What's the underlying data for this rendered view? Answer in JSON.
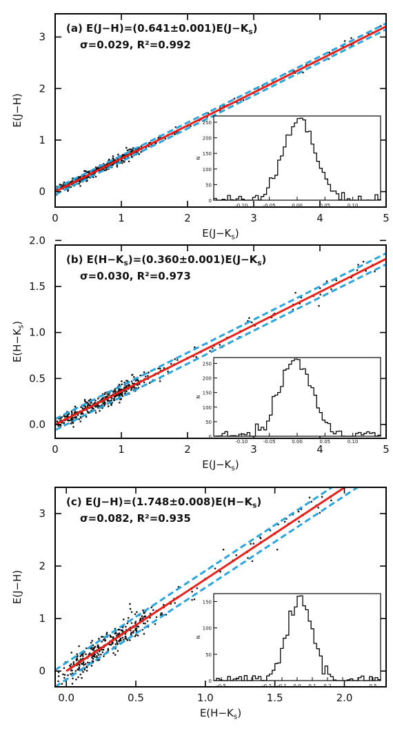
{
  "chart_data": [
    {
      "type": "scatter",
      "panel_label": "(a)",
      "annotation_line1": "(a) E(J−H)=(0.641±0.001)E(J−K_s)",
      "annotation_line2": "σ=0.029, R²=0.992",
      "xlabel": "E(J−K_s)",
      "ylabel": "E(J−H)",
      "xlim": [
        0,
        5
      ],
      "ylim": [
        -0.3,
        3.45
      ],
      "xticks": [
        0,
        1,
        2,
        3,
        4,
        5
      ],
      "yticks": [
        0,
        1,
        2,
        3
      ],
      "x_tick_labels": [
        "0",
        "1",
        "2",
        "3",
        "4",
        "5"
      ],
      "y_tick_labels": [
        "0",
        "1",
        "2",
        "3"
      ],
      "grid": false,
      "fit": {
        "slope": 0.641,
        "intercept": 0.0,
        "color": "#e8201a"
      },
      "band": {
        "offset": 0.058,
        "color": "#2aa4dd"
      },
      "points": [
        [
          0.1,
          0.07
        ],
        [
          0.15,
          0.09
        ],
        [
          0.2,
          0.14
        ],
        [
          0.25,
          0.15
        ],
        [
          0.3,
          0.19
        ],
        [
          0.35,
          0.24
        ],
        [
          0.4,
          0.25
        ],
        [
          0.45,
          0.3
        ],
        [
          0.5,
          0.32
        ],
        [
          0.55,
          0.35
        ],
        [
          0.6,
          0.38
        ],
        [
          0.65,
          0.43
        ],
        [
          0.7,
          0.45
        ],
        [
          0.75,
          0.47
        ],
        [
          0.8,
          0.52
        ],
        [
          0.85,
          0.54
        ],
        [
          0.9,
          0.58
        ],
        [
          0.95,
          0.6
        ],
        [
          1.0,
          0.64
        ],
        [
          1.05,
          0.67
        ],
        [
          1.1,
          0.71
        ],
        [
          1.15,
          0.73
        ],
        [
          1.2,
          0.77
        ],
        [
          1.25,
          0.8
        ],
        [
          1.3,
          0.83
        ],
        [
          1.4,
          0.9
        ],
        [
          1.5,
          0.96
        ],
        [
          1.6,
          1.03
        ],
        [
          1.7,
          1.09
        ],
        [
          1.8,
          1.15
        ],
        [
          2.0,
          1.28
        ],
        [
          2.2,
          1.41
        ],
        [
          2.4,
          1.54
        ],
        [
          2.6,
          1.67
        ],
        [
          2.8,
          1.79
        ],
        [
          3.0,
          1.92
        ],
        [
          3.3,
          2.12
        ],
        [
          3.6,
          2.31
        ],
        [
          3.9,
          2.5
        ],
        [
          4.2,
          2.69
        ],
        [
          4.5,
          2.88
        ],
        [
          4.8,
          3.08
        ]
      ],
      "inset": {
        "xlim": [
          -0.15,
          0.15
        ],
        "ylim": [
          0,
          270
        ],
        "xticks": [
          -0.1,
          -0.05,
          0.0,
          0.05,
          0.1
        ],
        "x_tick_labels": [
          "-0.10",
          "-0.05",
          "0.00",
          "0.05",
          "0.10"
        ],
        "yticks": [
          0,
          50,
          100,
          150,
          200,
          250
        ],
        "y_tick_labels": [
          "0",
          "50",
          "100",
          "150",
          "200",
          "250"
        ],
        "ylabel": "N",
        "mu": 0.004,
        "sigma": 0.029,
        "peak": 258
      }
    },
    {
      "type": "scatter",
      "panel_label": "(b)",
      "annotation_line1": "(b) E(H−K_s)=(0.360±0.001)E(J−K_s)",
      "annotation_line2": "σ=0.030, R²=0.973",
      "xlabel": "E(J−K_s)",
      "ylabel": "E(H−K_s)",
      "xlim": [
        0,
        5
      ],
      "ylim": [
        -0.15,
        1.95
      ],
      "xticks": [
        0,
        1,
        2,
        3,
        4,
        5
      ],
      "yticks": [
        0.0,
        0.5,
        1.0,
        1.5,
        2.0
      ],
      "x_tick_labels": [
        "0",
        "1",
        "2",
        "3",
        "4",
        "5"
      ],
      "y_tick_labels": [
        "0.0",
        "0.5",
        "1.0",
        "1.5",
        "2.0"
      ],
      "grid": false,
      "fit": {
        "slope": 0.36,
        "intercept": 0.0,
        "color": "#e8201a"
      },
      "band": {
        "offset": 0.06,
        "color": "#2aa4dd"
      },
      "points": [
        [
          0.1,
          0.04
        ],
        [
          0.15,
          0.05
        ],
        [
          0.2,
          0.08
        ],
        [
          0.25,
          0.09
        ],
        [
          0.3,
          0.11
        ],
        [
          0.35,
          0.13
        ],
        [
          0.4,
          0.14
        ],
        [
          0.45,
          0.17
        ],
        [
          0.5,
          0.18
        ],
        [
          0.55,
          0.2
        ],
        [
          0.6,
          0.22
        ],
        [
          0.65,
          0.24
        ],
        [
          0.7,
          0.25
        ],
        [
          0.75,
          0.27
        ],
        [
          0.8,
          0.29
        ],
        [
          0.85,
          0.31
        ],
        [
          0.9,
          0.32
        ],
        [
          0.95,
          0.34
        ],
        [
          1.0,
          0.36
        ],
        [
          1.05,
          0.38
        ],
        [
          1.1,
          0.39
        ],
        [
          1.15,
          0.41
        ],
        [
          1.2,
          0.44
        ],
        [
          1.25,
          0.45
        ],
        [
          1.3,
          0.47
        ],
        [
          1.4,
          0.5
        ],
        [
          1.5,
          0.54
        ],
        [
          1.6,
          0.58
        ],
        [
          1.7,
          0.61
        ],
        [
          1.8,
          0.65
        ],
        [
          2.0,
          0.72
        ],
        [
          2.2,
          0.79
        ],
        [
          2.4,
          0.86
        ],
        [
          2.6,
          0.94
        ],
        [
          2.8,
          1.01
        ],
        [
          3.0,
          1.08
        ],
        [
          3.3,
          1.19
        ],
        [
          3.6,
          1.3
        ],
        [
          3.9,
          1.4
        ],
        [
          4.2,
          1.51
        ],
        [
          4.5,
          1.62
        ],
        [
          4.8,
          1.73
        ]
      ],
      "inset": {
        "xlim": [
          -0.15,
          0.15
        ],
        "ylim": [
          0,
          270
        ],
        "xticks": [
          -0.1,
          -0.05,
          0.0,
          0.05,
          0.1
        ],
        "x_tick_labels": [
          "-0.10",
          "-0.05",
          "0.00",
          "0.05",
          "0.10"
        ],
        "yticks": [
          0,
          50,
          100,
          150,
          200,
          250
        ],
        "y_tick_labels": [
          "0",
          "50",
          "100",
          "150",
          "200",
          "250"
        ],
        "ylabel": "N",
        "mu": -0.003,
        "sigma": 0.03,
        "peak": 258
      }
    },
    {
      "type": "scatter",
      "panel_label": "(c)",
      "annotation_line1": "(c) E(J−H)=(1.748±0.008)E(H−K_s)",
      "annotation_line2": "σ=0.082, R²=0.935",
      "xlabel": "E(H−K_s)",
      "ylabel": "E(J−H)",
      "xlim": [
        -0.08,
        2.3
      ],
      "ylim": [
        -0.3,
        3.5
      ],
      "xticks": [
        0.0,
        0.5,
        1.0,
        1.5,
        2.0
      ],
      "yticks": [
        0,
        1,
        2,
        3
      ],
      "x_tick_labels": [
        "0.0",
        "0.5",
        "1.0",
        "1.5",
        "2.0"
      ],
      "y_tick_labels": [
        "0",
        "1",
        "2",
        "3"
      ],
      "grid": false,
      "fit": {
        "slope": 1.748,
        "intercept": 0.0,
        "color": "#e8201a"
      },
      "band": {
        "offset": 0.16,
        "color": "#2aa4dd"
      },
      "points": [
        [
          0.03,
          0.05
        ],
        [
          0.05,
          0.09
        ],
        [
          0.08,
          0.14
        ],
        [
          0.1,
          0.17
        ],
        [
          0.12,
          0.21
        ],
        [
          0.15,
          0.26
        ],
        [
          0.18,
          0.31
        ],
        [
          0.2,
          0.35
        ],
        [
          0.22,
          0.39
        ],
        [
          0.25,
          0.44
        ],
        [
          0.28,
          0.49
        ],
        [
          0.3,
          0.52
        ],
        [
          0.33,
          0.58
        ],
        [
          0.35,
          0.61
        ],
        [
          0.38,
          0.66
        ],
        [
          0.4,
          0.7
        ],
        [
          0.43,
          0.75
        ],
        [
          0.45,
          0.79
        ],
        [
          0.48,
          0.84
        ],
        [
          0.5,
          0.87
        ],
        [
          0.55,
          0.96
        ],
        [
          0.6,
          1.05
        ],
        [
          0.65,
          1.14
        ],
        [
          0.7,
          1.22
        ],
        [
          0.75,
          1.31
        ],
        [
          0.8,
          1.4
        ],
        [
          0.9,
          1.57
        ],
        [
          1.0,
          1.75
        ],
        [
          1.1,
          1.92
        ],
        [
          1.2,
          2.1
        ],
        [
          1.3,
          2.27
        ],
        [
          1.4,
          2.45
        ],
        [
          1.5,
          2.62
        ],
        [
          1.6,
          2.8
        ],
        [
          1.7,
          2.97
        ],
        [
          1.8,
          3.15
        ],
        [
          1.9,
          3.32
        ]
      ],
      "inset": {
        "xlim": [
          -0.55,
          0.55
        ],
        "ylim": [
          0,
          165
        ],
        "xticks": [
          -0.5,
          -0.4,
          -0.3,
          -0.2,
          -0.1,
          0.0,
          0.1,
          0.2,
          0.3,
          0.4,
          0.5
        ],
        "x_tick_labels": [
          "-0.5",
          "",
          "",
          "-0.2",
          "-0.1",
          "0.0",
          "0.1",
          "0.2",
          "",
          "",
          "0.5"
        ],
        "yticks": [
          0,
          50,
          100,
          150
        ],
        "y_tick_labels": [
          "0",
          "50",
          "100",
          "150"
        ],
        "ylabel": "N",
        "mu": 0.02,
        "sigma": 0.082,
        "peak": 152
      }
    }
  ]
}
